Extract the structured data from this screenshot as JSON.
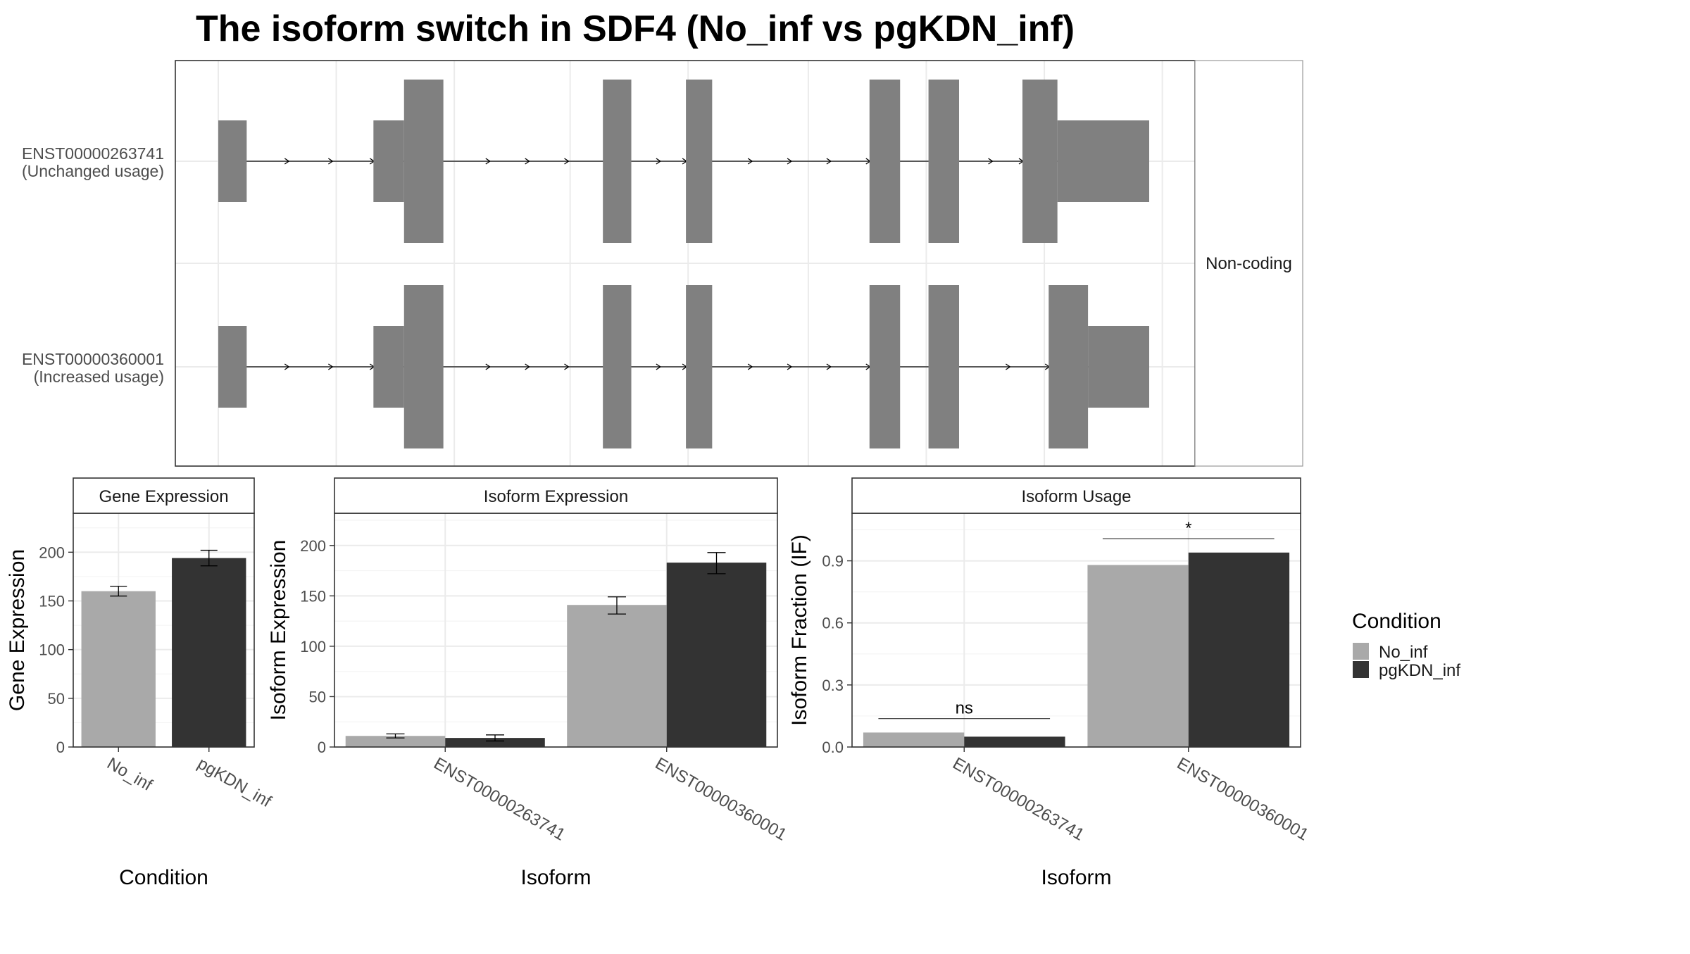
{
  "title": "The isoform switch in SDF4 (No_inf vs pgKDN_inf)",
  "colors": {
    "exon": "#808080",
    "no_inf": "#a9a9a9",
    "pgkdn_inf": "#333333",
    "panel_border": "#333333",
    "strip_fill": "#ffffff",
    "grid_major": "#ebebeb",
    "text": "#000000",
    "tick_text": "#4d4d4d"
  },
  "structure": {
    "facet_label": "Non-coding",
    "transcripts": [
      {
        "id": "ENST00000263741",
        "usage": "(Unchanged usage)",
        "exons": [
          {
            "start": 0.0,
            "end": 0.65,
            "type": "utr"
          },
          {
            "start": 3.55,
            "end": 4.25,
            "type": "utr"
          },
          {
            "start": 4.25,
            "end": 5.15,
            "type": "cds"
          },
          {
            "start": 8.8,
            "end": 9.45,
            "type": "cds"
          },
          {
            "start": 10.7,
            "end": 11.3,
            "type": "cds"
          },
          {
            "start": 14.9,
            "end": 15.6,
            "type": "cds"
          },
          {
            "start": 16.25,
            "end": 16.95,
            "type": "cds"
          },
          {
            "start": 18.4,
            "end": 19.2,
            "type": "cds"
          },
          {
            "start": 19.2,
            "end": 21.3,
            "type": "utr"
          }
        ],
        "arrows": [
          1.6,
          2.6,
          3.55,
          6.2,
          7.1,
          8.0,
          10.1,
          10.7,
          12.2,
          13.1,
          14.0,
          14.9,
          17.7,
          18.4
        ]
      },
      {
        "id": "ENST00000360001",
        "usage": "(Increased usage)",
        "exons": [
          {
            "start": 0.0,
            "end": 0.65,
            "type": "utr"
          },
          {
            "start": 3.55,
            "end": 4.25,
            "type": "utr"
          },
          {
            "start": 4.25,
            "end": 5.15,
            "type": "cds"
          },
          {
            "start": 8.8,
            "end": 9.45,
            "type": "cds"
          },
          {
            "start": 10.7,
            "end": 11.3,
            "type": "cds"
          },
          {
            "start": 14.9,
            "end": 15.6,
            "type": "cds"
          },
          {
            "start": 16.25,
            "end": 16.95,
            "type": "cds"
          },
          {
            "start": 19.0,
            "end": 19.9,
            "type": "cds"
          },
          {
            "start": 19.9,
            "end": 21.3,
            "type": "utr"
          }
        ],
        "arrows": [
          1.6,
          2.6,
          3.55,
          6.2,
          7.1,
          8.0,
          10.1,
          10.7,
          12.2,
          13.1,
          14.0,
          14.9,
          18.1,
          19.0
        ]
      }
    ]
  },
  "chart_data": [
    {
      "type": "bar",
      "title": "Gene Expression",
      "xlabel": "Condition",
      "ylabel": "Gene Expression",
      "categories": [
        "No_inf",
        "pgKDN_inf"
      ],
      "values": [
        160,
        194
      ],
      "errors": [
        [
          155,
          165
        ],
        [
          186,
          202
        ]
      ],
      "ylim": [
        0,
        240
      ],
      "yticks": [
        0,
        50,
        100,
        150,
        200
      ],
      "grid": true
    },
    {
      "type": "bar",
      "title": "Isoform Expression",
      "xlabel": "Isoform",
      "ylabel": "Isoform Expression",
      "categories": [
        "ENST00000263741",
        "ENST00000360001"
      ],
      "series": [
        {
          "name": "No_inf",
          "values": [
            11,
            141
          ],
          "errors": [
            [
              9,
              13
            ],
            [
              132,
              149
            ]
          ]
        },
        {
          "name": "pgKDN_inf",
          "values": [
            9,
            183
          ],
          "errors": [
            [
              6,
              12
            ],
            [
              172,
              193
            ]
          ]
        }
      ],
      "ylim": [
        0,
        232
      ],
      "yticks": [
        0,
        50,
        100,
        150,
        200
      ],
      "grid": true
    },
    {
      "type": "bar",
      "title": "Isoform Usage",
      "xlabel": "Isoform",
      "ylabel": "Isoform Fraction (IF)",
      "categories": [
        "ENST00000263741",
        "ENST00000360001"
      ],
      "series": [
        {
          "name": "No_inf",
          "values": [
            0.07,
            0.88
          ]
        },
        {
          "name": "pgKDN_inf",
          "values": [
            0.05,
            0.94
          ]
        }
      ],
      "annotations": [
        "ns",
        "*"
      ],
      "ylim": [
        0,
        1.13
      ],
      "yticks": [
        "0.0",
        "0.3",
        "0.6",
        "0.9"
      ],
      "grid": true
    }
  ],
  "legend": {
    "title": "Condition",
    "items": [
      "No_inf",
      "pgKDN_inf"
    ]
  }
}
